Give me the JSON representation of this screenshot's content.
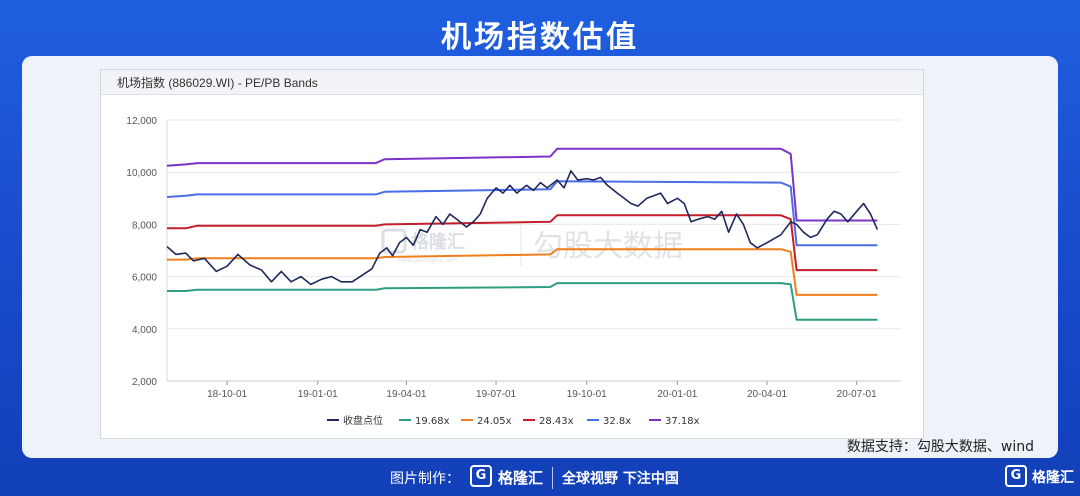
{
  "page": {
    "title": "机场指数估值",
    "source": "数据支持：勾股大数据、wind"
  },
  "footer": {
    "made_by": "图片制作：",
    "logo_glyph": "G",
    "brand": "格隆汇",
    "slogan": "全球视野 下注中国",
    "corner_brand": "格隆汇"
  },
  "watermark": {
    "brand": "格隆汇",
    "url": "www.gelonghui.com",
    "product": "勾股大数据"
  },
  "chart_data": {
    "type": "line",
    "title": "机场指数 (886029.WI) - PE/PB Bands",
    "xlabel": "",
    "ylabel": "",
    "ylim": [
      2000,
      12000
    ],
    "xlim": [
      "2018-08-01",
      "2020-08-15"
    ],
    "yticks": [
      2000,
      4000,
      6000,
      8000,
      10000,
      12000
    ],
    "ytick_labels": [
      "2,000",
      "4,000",
      "6,000",
      "8,000",
      "10,000",
      "12,000"
    ],
    "xticks": [
      "2018-10-01",
      "2019-01-01",
      "2019-04-01",
      "2019-07-01",
      "2019-10-01",
      "2020-01-01",
      "2020-04-01",
      "2020-07-01"
    ],
    "xtick_labels": [
      "18-10-01",
      "19-01-01",
      "19-04-01",
      "19-07-01",
      "19-10-01",
      "20-01-01",
      "20-04-01",
      "20-07-01"
    ],
    "grid": true,
    "legend_position": "bottom",
    "series": [
      {
        "name": "收盘点位",
        "color": "#1f2a5c",
        "points": [
          [
            "2018-08-01",
            7150
          ],
          [
            "2018-08-10",
            6850
          ],
          [
            "2018-08-20",
            6900
          ],
          [
            "2018-08-28",
            6600
          ],
          [
            "2018-09-08",
            6700
          ],
          [
            "2018-09-20",
            6200
          ],
          [
            "2018-10-01",
            6400
          ],
          [
            "2018-10-12",
            6850
          ],
          [
            "2018-10-24",
            6450
          ],
          [
            "2018-11-05",
            6250
          ],
          [
            "2018-11-15",
            5800
          ],
          [
            "2018-11-25",
            6200
          ],
          [
            "2018-12-05",
            5800
          ],
          [
            "2018-12-15",
            6000
          ],
          [
            "2018-12-25",
            5700
          ],
          [
            "2019-01-05",
            5900
          ],
          [
            "2019-01-15",
            6000
          ],
          [
            "2019-01-25",
            5800
          ],
          [
            "2019-02-05",
            5800
          ],
          [
            "2019-02-15",
            6050
          ],
          [
            "2019-02-25",
            6300
          ],
          [
            "2019-03-05",
            6900
          ],
          [
            "2019-03-12",
            7100
          ],
          [
            "2019-03-18",
            6800
          ],
          [
            "2019-03-25",
            7300
          ],
          [
            "2019-04-01",
            7500
          ],
          [
            "2019-04-08",
            7200
          ],
          [
            "2019-04-15",
            7800
          ],
          [
            "2019-04-22",
            7700
          ],
          [
            "2019-05-01",
            8300
          ],
          [
            "2019-05-08",
            8000
          ],
          [
            "2019-05-15",
            8400
          ],
          [
            "2019-05-22",
            8200
          ],
          [
            "2019-06-01",
            7900
          ],
          [
            "2019-06-08",
            8100
          ],
          [
            "2019-06-15",
            8400
          ],
          [
            "2019-06-22",
            9000
          ],
          [
            "2019-07-01",
            9400
          ],
          [
            "2019-07-08",
            9200
          ],
          [
            "2019-07-15",
            9500
          ],
          [
            "2019-07-22",
            9200
          ],
          [
            "2019-08-01",
            9500
          ],
          [
            "2019-08-08",
            9300
          ],
          [
            "2019-08-15",
            9600
          ],
          [
            "2019-08-22",
            9400
          ],
          [
            "2019-09-01",
            9700
          ],
          [
            "2019-09-08",
            9400
          ],
          [
            "2019-09-15",
            10050
          ],
          [
            "2019-09-22",
            9700
          ],
          [
            "2019-10-01",
            9750
          ],
          [
            "2019-10-08",
            9700
          ],
          [
            "2019-10-15",
            9800
          ],
          [
            "2019-10-22",
            9500
          ],
          [
            "2019-11-01",
            9200
          ],
          [
            "2019-11-08",
            9000
          ],
          [
            "2019-11-15",
            8800
          ],
          [
            "2019-11-22",
            8700
          ],
          [
            "2019-12-01",
            9000
          ],
          [
            "2019-12-08",
            9100
          ],
          [
            "2019-12-15",
            9200
          ],
          [
            "2019-12-22",
            8800
          ],
          [
            "2020-01-01",
            9000
          ],
          [
            "2020-01-08",
            8800
          ],
          [
            "2020-01-15",
            8100
          ],
          [
            "2020-01-22",
            8200
          ],
          [
            "2020-02-01",
            8300
          ],
          [
            "2020-02-08",
            8200
          ],
          [
            "2020-02-15",
            8500
          ],
          [
            "2020-02-22",
            7700
          ],
          [
            "2020-03-01",
            8400
          ],
          [
            "2020-03-08",
            8000
          ],
          [
            "2020-03-15",
            7300
          ],
          [
            "2020-03-22",
            7100
          ],
          [
            "2020-04-01",
            7300
          ],
          [
            "2020-04-15",
            7600
          ],
          [
            "2020-04-25",
            8100
          ],
          [
            "2020-05-01",
            8000
          ],
          [
            "2020-05-08",
            7700
          ],
          [
            "2020-05-15",
            7500
          ],
          [
            "2020-05-22",
            7600
          ],
          [
            "2020-06-01",
            8200
          ],
          [
            "2020-06-08",
            8500
          ],
          [
            "2020-06-15",
            8400
          ],
          [
            "2020-06-22",
            8100
          ],
          [
            "2020-07-01",
            8500
          ],
          [
            "2020-07-08",
            8800
          ],
          [
            "2020-07-15",
            8400
          ],
          [
            "2020-07-22",
            7800
          ]
        ]
      },
      {
        "name": "19.68x",
        "color": "#2e9e82",
        "points": [
          [
            "2018-08-01",
            5450
          ],
          [
            "2018-08-20",
            5450
          ],
          [
            "2018-09-01",
            5500
          ],
          [
            "2019-03-01",
            5500
          ],
          [
            "2019-03-10",
            5550
          ],
          [
            "2019-08-25",
            5600
          ],
          [
            "2019-09-01",
            5750
          ],
          [
            "2020-04-15",
            5750
          ],
          [
            "2020-04-25",
            5700
          ],
          [
            "2020-05-01",
            4350
          ],
          [
            "2020-07-22",
            4350
          ]
        ]
      },
      {
        "name": "24.05x",
        "color": "#f07e1c",
        "points": [
          [
            "2018-08-01",
            6650
          ],
          [
            "2018-08-20",
            6650
          ],
          [
            "2018-09-01",
            6700
          ],
          [
            "2019-03-01",
            6700
          ],
          [
            "2019-03-10",
            6750
          ],
          [
            "2019-08-25",
            6850
          ],
          [
            "2019-09-01",
            7050
          ],
          [
            "2020-04-15",
            7050
          ],
          [
            "2020-04-25",
            6950
          ],
          [
            "2020-05-01",
            5300
          ],
          [
            "2020-07-22",
            5300
          ]
        ]
      },
      {
        "name": "28.43x",
        "color": "#c41e2b",
        "points": [
          [
            "2018-08-01",
            7850
          ],
          [
            "2018-08-20",
            7850
          ],
          [
            "2018-09-01",
            7950
          ],
          [
            "2019-03-01",
            7950
          ],
          [
            "2019-03-10",
            8000
          ],
          [
            "2019-08-25",
            8100
          ],
          [
            "2019-09-01",
            8350
          ],
          [
            "2020-04-15",
            8350
          ],
          [
            "2020-04-25",
            8200
          ],
          [
            "2020-05-01",
            6250
          ],
          [
            "2020-07-22",
            6250
          ]
        ]
      },
      {
        "name": "32.8x",
        "color": "#4a6ee8",
        "points": [
          [
            "2018-08-01",
            9050
          ],
          [
            "2018-08-20",
            9100
          ],
          [
            "2018-09-01",
            9150
          ],
          [
            "2019-03-01",
            9150
          ],
          [
            "2019-03-10",
            9250
          ],
          [
            "2019-08-25",
            9350
          ],
          [
            "2019-09-01",
            9650
          ],
          [
            "2020-04-15",
            9600
          ],
          [
            "2020-04-25",
            9450
          ],
          [
            "2020-05-01",
            7200
          ],
          [
            "2020-07-22",
            7200
          ]
        ]
      },
      {
        "name": "37.18x",
        "color": "#7b34c8",
        "points": [
          [
            "2018-08-01",
            10250
          ],
          [
            "2018-08-20",
            10300
          ],
          [
            "2018-09-01",
            10350
          ],
          [
            "2019-03-01",
            10350
          ],
          [
            "2019-03-10",
            10500
          ],
          [
            "2019-08-25",
            10600
          ],
          [
            "2019-09-01",
            10900
          ],
          [
            "2020-04-15",
            10900
          ],
          [
            "2020-04-25",
            10700
          ],
          [
            "2020-05-01",
            8150
          ],
          [
            "2020-07-22",
            8150
          ]
        ]
      }
    ]
  }
}
